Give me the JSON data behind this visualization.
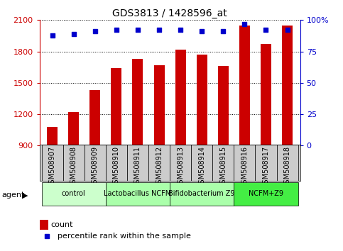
{
  "title": "GDS3813 / 1428596_at",
  "samples": [
    "GSM508907",
    "GSM508908",
    "GSM508909",
    "GSM508910",
    "GSM508911",
    "GSM508912",
    "GSM508913",
    "GSM508914",
    "GSM508915",
    "GSM508916",
    "GSM508917",
    "GSM508918"
  ],
  "counts": [
    1080,
    1220,
    1430,
    1640,
    1730,
    1670,
    1820,
    1770,
    1660,
    2050,
    1870,
    2050
  ],
  "percentile_ranks": [
    88,
    89,
    91,
    92,
    92,
    92,
    92,
    91,
    91,
    97,
    92,
    92
  ],
  "ylim_left": [
    900,
    2100
  ],
  "ylim_right": [
    0,
    100
  ],
  "yticks_left": [
    900,
    1200,
    1500,
    1800,
    2100
  ],
  "yticks_right": [
    0,
    25,
    50,
    75,
    100
  ],
  "bar_color": "#cc0000",
  "dot_color": "#0000cc",
  "agent_groups": [
    {
      "label": "control",
      "start": 0,
      "end": 2,
      "color": "#ccffcc"
    },
    {
      "label": "Lactobacillus NCFM",
      "start": 3,
      "end": 5,
      "color": "#aaffaa"
    },
    {
      "label": "Bifidobacterium Z9",
      "start": 6,
      "end": 8,
      "color": "#aaffaa"
    },
    {
      "label": "NCFM+Z9",
      "start": 9,
      "end": 11,
      "color": "#44ee44"
    }
  ],
  "left_axis_color": "#cc0000",
  "right_axis_color": "#0000cc",
  "bg_color": "#ffffff",
  "legend_count_color": "#cc0000",
  "legend_pct_color": "#0000cc",
  "bar_width": 0.5,
  "gsm_bg_color": "#cccccc"
}
